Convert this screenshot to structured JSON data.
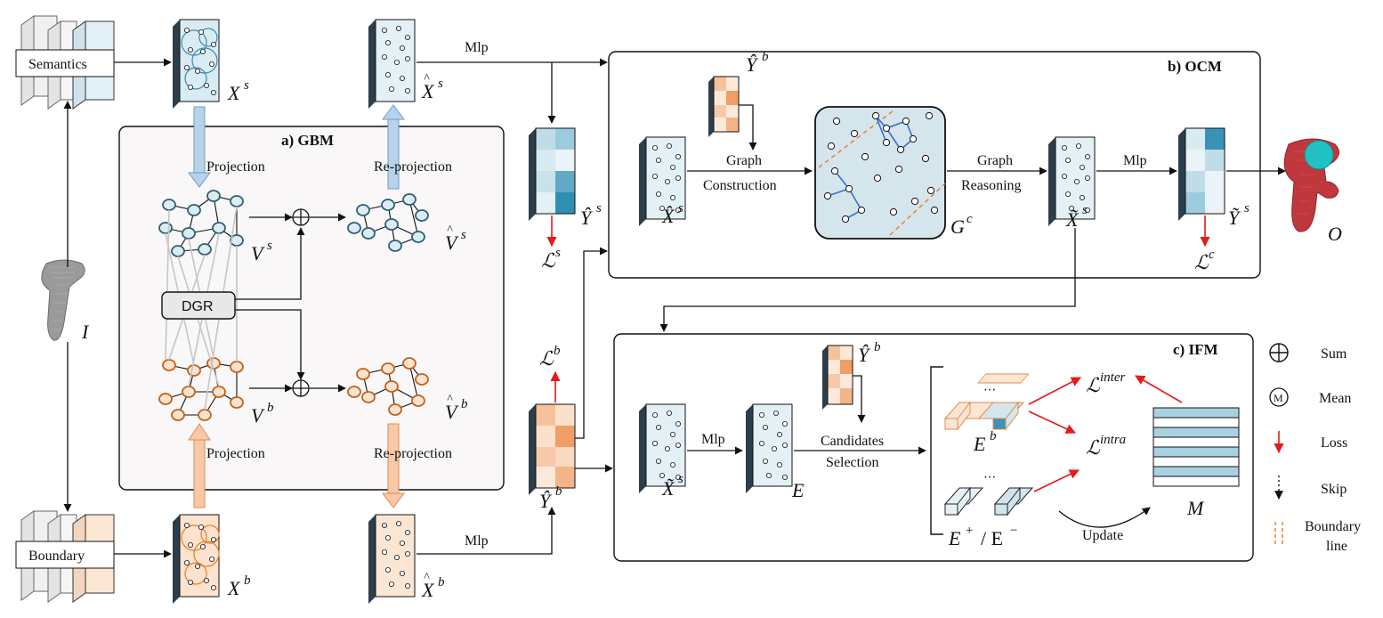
{
  "modules": {
    "gbm": "a) GBM",
    "ocm": "b) OCM",
    "ifm": "c) IFM",
    "dgr": "DGR"
  },
  "inputs": {
    "semantics": "Semantics",
    "boundary": "Boundary"
  },
  "ops": {
    "projection": "Projection",
    "reprojection": "Re-projection",
    "mlp": "Mlp",
    "graph": "Graph",
    "construction": "Construction",
    "reasoning": "Reasoning",
    "candidates": "Candidates",
    "selection": "Selection",
    "update": "Update"
  },
  "symbols": {
    "I": "I",
    "O": "O",
    "E": "E",
    "M": "M",
    "Xs": "X",
    "Xb": "X",
    "Vs": "V",
    "Vb": "V",
    "Gc": "G",
    "Ls": "ℒ",
    "Lb": "ℒ",
    "Lc": "ℒ",
    "Linter": "ℒ",
    "Lintra": "ℒ",
    "Eb": "E",
    "Epm": "E"
  },
  "sup": {
    "s": "s",
    "b": "b",
    "c": "c",
    "inter": "inter",
    "intra": "intra",
    "pm": "+ / E",
    "minus": "−",
    "plus": "+"
  },
  "legend": {
    "sum": "Sum",
    "mean": "Mean",
    "loss": "Loss",
    "skip": "Skip",
    "boundary1": "Boundary",
    "boundary2": "line",
    "mean_glyph": "M"
  },
  "colors": {
    "blue_node": "#2e5f78",
    "orange_node": "#c2601a",
    "blue_fill": "#e2eff4",
    "orange_fill": "#fce5d3",
    "red": "#e41a1c"
  }
}
